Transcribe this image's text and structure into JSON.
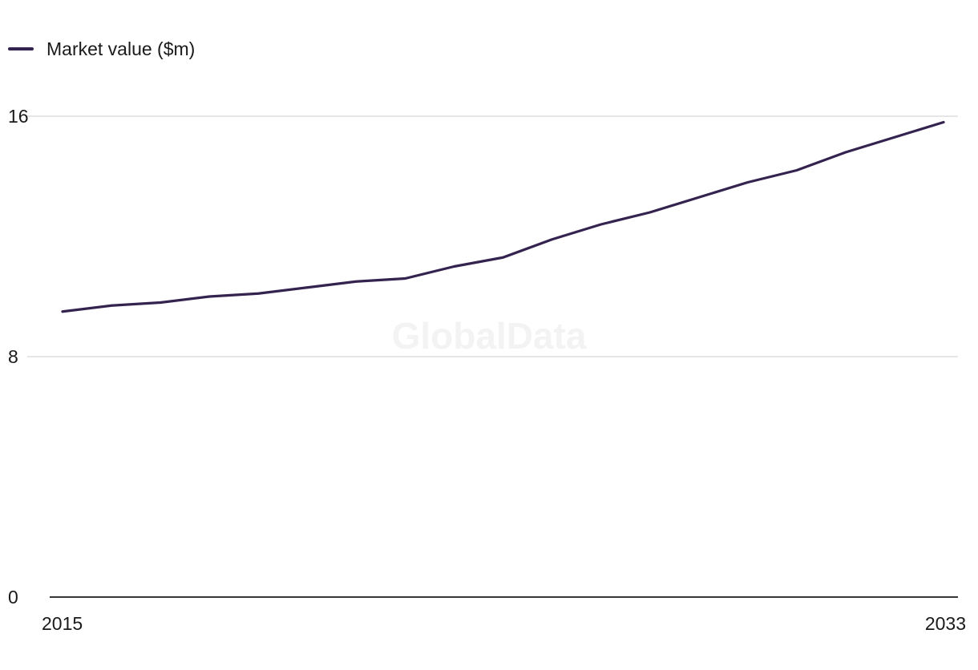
{
  "watermark": "GlobalData",
  "colors": {
    "series": "#34234f",
    "grid": "#d7d7d7",
    "axis": "#1a1a1a",
    "text": "#1a1a1a"
  },
  "chart_data": {
    "type": "line",
    "title": "",
    "xlabel": "",
    "ylabel": "",
    "x": [
      2015,
      2016,
      2017,
      2018,
      2019,
      2020,
      2021,
      2022,
      2023,
      2024,
      2025,
      2026,
      2027,
      2028,
      2029,
      2030,
      2031,
      2032,
      2033
    ],
    "series": [
      {
        "name": "Market value ($m)",
        "values": [
          9.5,
          9.7,
          9.8,
          10.0,
          10.1,
          10.3,
          10.5,
          10.6,
          11.0,
          11.3,
          11.9,
          12.4,
          12.8,
          13.3,
          13.8,
          14.2,
          14.8,
          15.3,
          15.8
        ]
      }
    ],
    "xlim": [
      2015,
      2033
    ],
    "ylim": [
      0,
      16
    ],
    "y_ticks": [
      "0",
      "8",
      "16"
    ],
    "x_tick_labels": [
      "2015",
      "2033"
    ],
    "grid": true,
    "legend_position": "top-left"
  }
}
